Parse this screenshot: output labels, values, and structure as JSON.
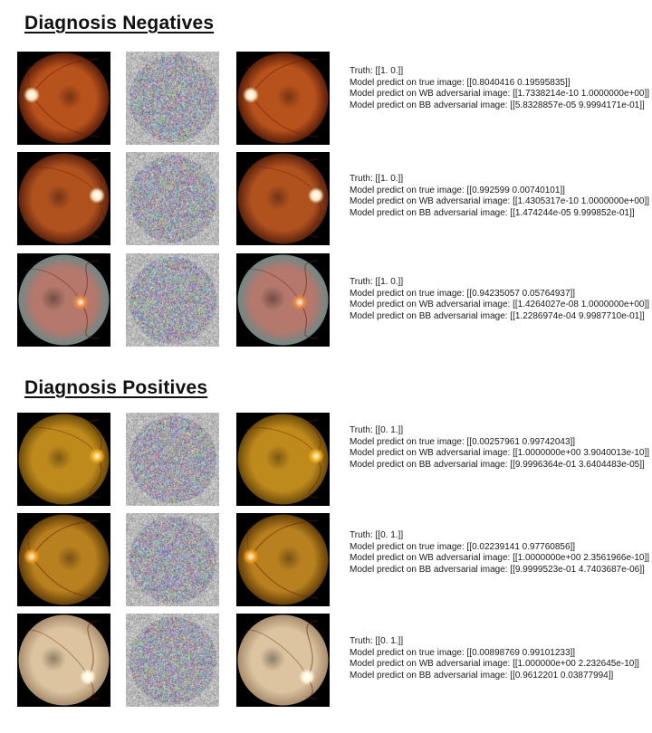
{
  "sections": [
    {
      "title": "Diagnosis Negatives",
      "rows": [
        {
          "truth": "Truth: [[1. 0.]]",
          "true_pred": "Model predict on true image: [[0.8040416 0.19595835]]",
          "wb_pred": "Model predict on WB adversarial image: [[1.7338214e-10 1.0000000e+00]]",
          "bb_pred": "Model predict on BB adversarial image: [[5.8328857e-05 9.9994171e-01]]",
          "fundus": {
            "bg": "#b8521c",
            "rim": "#5a1e08",
            "disc_color": "#f4e7c0",
            "disc_side": "left"
          }
        },
        {
          "truth": "Truth: [[1. 0.]]",
          "true_pred": "Model predict on true image: [[0.992599 0.00740101]]",
          "wb_pred": "Model predict on WB adversarial image: [[1.4305317e-10 1.0000000e+00]]",
          "bb_pred": "Model predict on BB adversarial image: [[1.474244e-05 9.999852e-01]]",
          "fundus": {
            "bg": "#b0521e",
            "rim": "#5c220c",
            "disc_color": "#f6ecc8",
            "disc_side": "right"
          }
        },
        {
          "truth": "Truth: [[1. 0.]]",
          "true_pred": "Model predict on true image: [[0.94235057 0.05764937]]",
          "wb_pred": "Model predict on WB adversarial image: [[1.4264027e-08 1.0000000e+00]]",
          "bb_pred": "Model predict on BB adversarial image: [[1.2286974e-04 9.9987710e-01]]",
          "fundus": {
            "bg": "#b4786c",
            "rim": "#6e8886",
            "disc_color": "#f08a3a",
            "disc_side": "center-right"
          }
        }
      ]
    },
    {
      "title": "Diagnosis Positives",
      "rows": [
        {
          "truth": "Truth: [[0. 1.]]",
          "true_pred": "Model predict on true image: [[0.00257961 0.99742043]]",
          "wb_pred": "Model predict on WB adversarial image: [[1.0000000e+00 3.9040013e-10]]",
          "bb_pred": "Model predict on BB adversarial image: [[9.9996364e-01 3.6404483e-05]]",
          "fundus": {
            "bg": "#bf8a1c",
            "rim": "#6a4a08",
            "disc_color": "#f4b020",
            "disc_side": "right"
          }
        },
        {
          "truth": "Truth: [[0. 1.]]",
          "true_pred": "Model predict on true image: [[0.02239141 0.97760856]]",
          "wb_pred": "Model predict on WB adversarial image: [[1.0000000e+00 2.3561966e-10]]",
          "bb_pred": "Model predict on BB adversarial image: [[9.9999523e-01 4.7403687e-06]]",
          "fundus": {
            "bg": "#b8801e",
            "rim": "#623e08",
            "disc_color": "#f5a020",
            "disc_side": "left"
          }
        },
        {
          "truth": "Truth: [[0. 1.]]",
          "true_pred": "Model predict on true image: [[0.00898769 0.99101233]]",
          "wb_pred": "Model predict on WB adversarial image: [[1.000000e+00 2.232645e-10]]",
          "bb_pred": "Model predict on BB adversarial image: [[0.9612201 0.03877994]]",
          "fundus": {
            "bg": "#dcc4a0",
            "rim": "#a88c6c",
            "disc_color": "#fff6dc",
            "disc_side": "bottom-right"
          }
        }
      ]
    }
  ]
}
